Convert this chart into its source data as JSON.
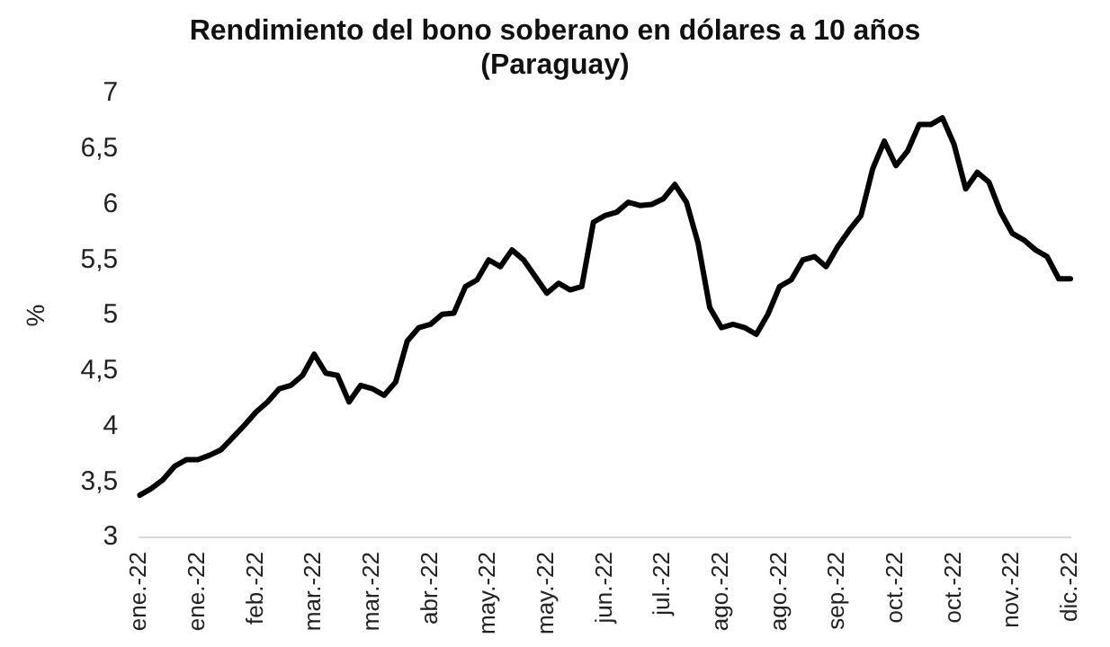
{
  "chart_data": {
    "type": "line",
    "title": "Rendimiento del bono soberano en dólares a 10 años\n(Paraguay)",
    "ylabel": "%",
    "categories": [
      "ene.-22",
      null,
      null,
      null,
      null,
      "ene.-22",
      null,
      null,
      null,
      null,
      "feb.-22",
      null,
      null,
      null,
      null,
      "mar.-22",
      null,
      null,
      null,
      null,
      "mar.-22",
      null,
      null,
      null,
      null,
      "abr.-22",
      null,
      null,
      null,
      null,
      "may.-22",
      null,
      null,
      null,
      null,
      "may.-22",
      null,
      null,
      null,
      null,
      "jun.-22",
      null,
      null,
      null,
      null,
      "jul.-22",
      null,
      null,
      null,
      null,
      "ago.-22",
      null,
      null,
      null,
      null,
      "ago.-22",
      null,
      null,
      null,
      null,
      "sep.-22",
      null,
      null,
      null,
      null,
      "oct.-22",
      null,
      null,
      null,
      null,
      "oct.-22",
      null,
      null,
      null,
      null,
      "nov.-22",
      null,
      null,
      null,
      null,
      "dic.-22"
    ],
    "series": [
      {
        "color": "#000000",
        "values": [
          3.38,
          3.44,
          3.52,
          3.64,
          3.7,
          3.7,
          3.74,
          3.79,
          3.9,
          4.01,
          4.13,
          4.22,
          4.34,
          4.37,
          4.46,
          4.65,
          4.48,
          4.46,
          4.22,
          4.37,
          4.34,
          4.28,
          4.4,
          4.77,
          4.89,
          4.92,
          5.01,
          5.02,
          5.26,
          5.32,
          5.5,
          5.44,
          5.59,
          5.5,
          5.35,
          5.2,
          5.29,
          5.23,
          5.26,
          5.84,
          5.9,
          5.93,
          6.02,
          5.99,
          6.0,
          6.05,
          6.18,
          6.02,
          5.65,
          5.07,
          4.89,
          4.92,
          4.89,
          4.83,
          5.01,
          5.26,
          5.32,
          5.5,
          5.53,
          5.44,
          5.62,
          5.77,
          5.9,
          6.32,
          6.57,
          6.35,
          6.48,
          6.72,
          6.72,
          6.78,
          6.54,
          6.14,
          6.29,
          6.2,
          5.93,
          5.74,
          5.68,
          5.59,
          5.53,
          5.33,
          5.33
        ]
      }
    ],
    "ylim": [
      3,
      7
    ],
    "yticks": [
      3,
      {
        "value": 3.5,
        "label": "3,5"
      },
      4,
      {
        "value": 4.5,
        "label": "4,5"
      },
      5,
      {
        "value": 5.5,
        "label": "5,5"
      },
      6,
      {
        "value": 6.5,
        "label": "6,5"
      },
      7
    ],
    "grid": false,
    "legend": false,
    "marker": "none",
    "line_style": "solid"
  }
}
